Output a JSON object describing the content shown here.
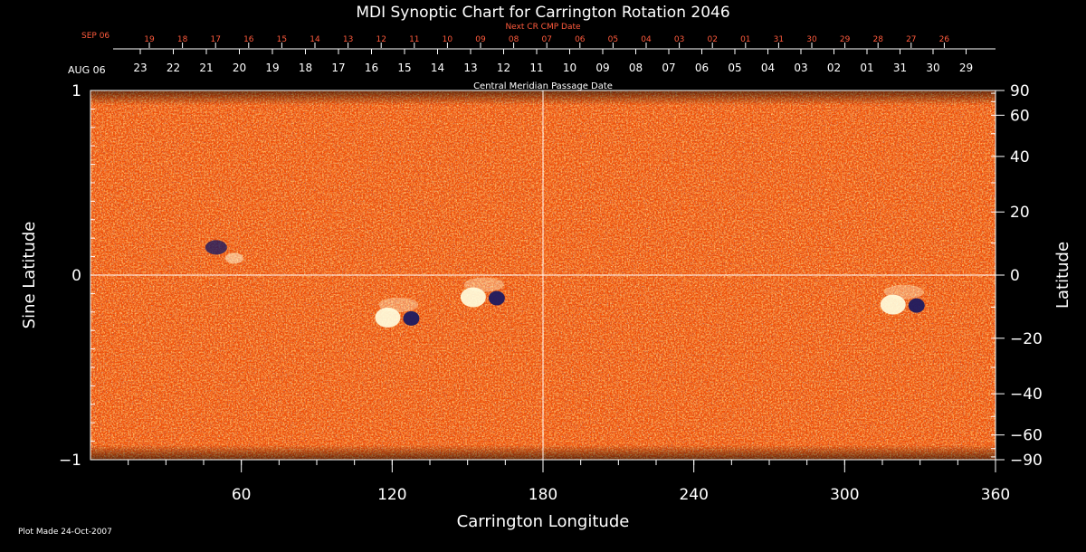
{
  "chart_data": {
    "type": "heatmap",
    "title": "MDI Synoptic Chart for Carrington Rotation 2046",
    "xlabel": "Carrington Longitude",
    "ylabel_left": "Sine Latitude",
    "ylabel_right": "Latitude",
    "xlim": [
      0,
      360
    ],
    "ylim": [
      -1,
      1
    ],
    "x_ticks": [
      60,
      120,
      180,
      240,
      300,
      360
    ],
    "y_ticks_left": [
      1,
      0,
      -1
    ],
    "y_ticks_left_labels": [
      "1",
      "0",
      "−1"
    ],
    "y_ticks_right": [
      90,
      60,
      40,
      20,
      0,
      -20,
      -40,
      -60,
      -90
    ],
    "y_ticks_right_labels": [
      "90",
      "60",
      "40",
      "20",
      "0",
      "−20",
      "−40",
      "−60",
      "−90"
    ],
    "grid": "center lines at longitude 180 and sine latitude 0",
    "top_axis_cmp": {
      "label": "Central Meridian Passage Date",
      "start_label": "AUG 06",
      "dates": [
        "23",
        "22",
        "21",
        "20",
        "19",
        "18",
        "17",
        "16",
        "15",
        "14",
        "13",
        "12",
        "11",
        "10",
        "09",
        "08",
        "07",
        "06",
        "05",
        "04",
        "03",
        "02",
        "01",
        "31",
        "30",
        "29"
      ]
    },
    "top_axis_next": {
      "label": "Next CR CMP Date",
      "start_label": "SEP 06",
      "dates": [
        "19",
        "18",
        "17",
        "16",
        "15",
        "14",
        "13",
        "12",
        "11",
        "10",
        "09",
        "08",
        "07",
        "06",
        "05",
        "04",
        "03",
        "02",
        "01",
        "31",
        "30",
        "29",
        "28",
        "27",
        "26"
      ]
    },
    "features": [
      {
        "name": "main-bipole",
        "lon": 124,
        "sinlat": -0.23,
        "polarity": "mixed"
      },
      {
        "name": "east-bipole",
        "lon": 158,
        "sinlat": -0.12,
        "polarity": "mixed"
      },
      {
        "name": "far-east-region",
        "lon": 325,
        "sinlat": -0.16,
        "polarity": "mixed"
      },
      {
        "name": "north-west-spot",
        "lon": 50,
        "sinlat": 0.15,
        "polarity": "negative"
      }
    ],
    "colors": {
      "background": "#000000",
      "field": "#ee4e08",
      "positive": "#ffffe0",
      "negative": "#1c1a60",
      "axis": "#ffffff",
      "next_axis": "#ff5a3c"
    }
  },
  "footer": {
    "plot_made": "Plot Made 24-Oct-2007"
  }
}
